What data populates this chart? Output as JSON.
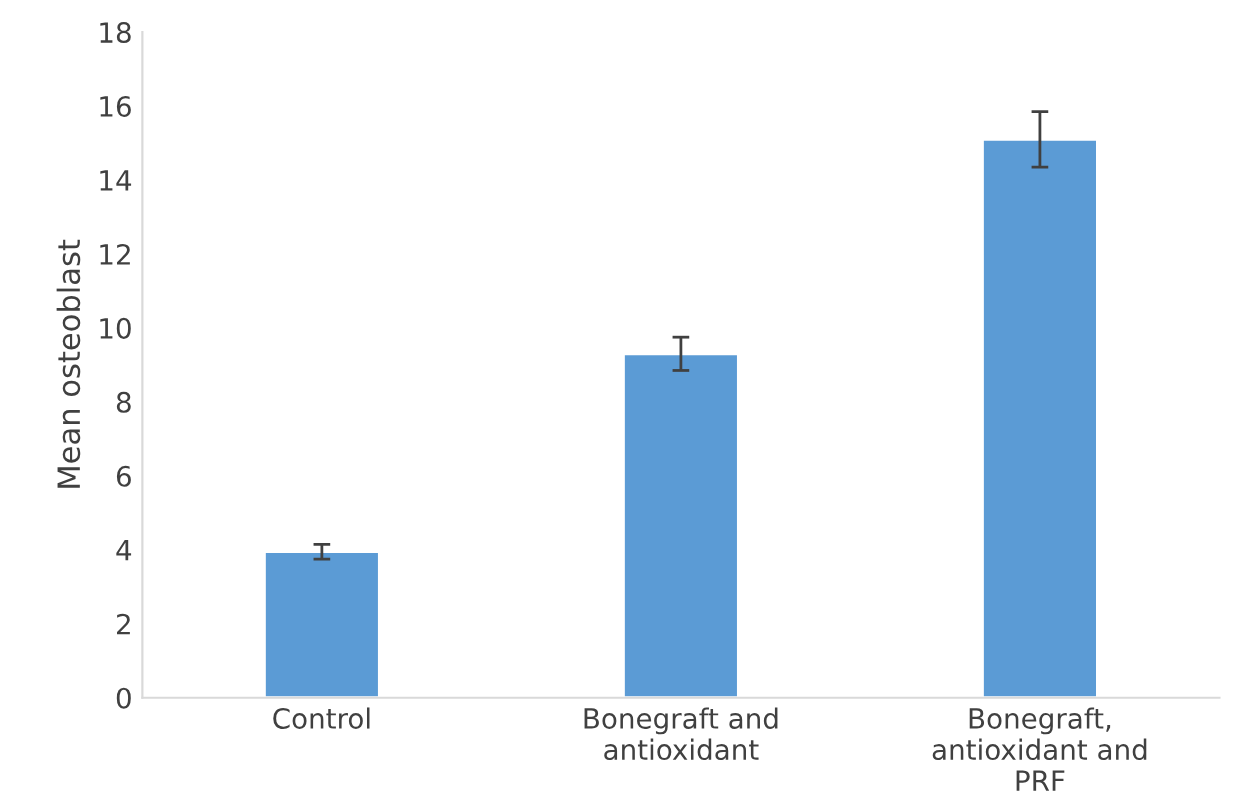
{
  "chart_data": {
    "type": "bar",
    "ylabel": "Mean osteoblast",
    "categories": [
      "Control",
      "Bonegraft and antioxidant",
      "Bonegraft, antioxidant and PRF"
    ],
    "values": [
      3.95,
      9.3,
      15.1
    ],
    "errors": [
      0.2,
      0.45,
      0.75
    ],
    "color": "#5b9bd5",
    "ylim": [
      0,
      18
    ],
    "yticks": [
      0,
      2,
      4,
      6,
      8,
      10,
      12,
      14,
      16,
      18
    ],
    "grid": false
  }
}
